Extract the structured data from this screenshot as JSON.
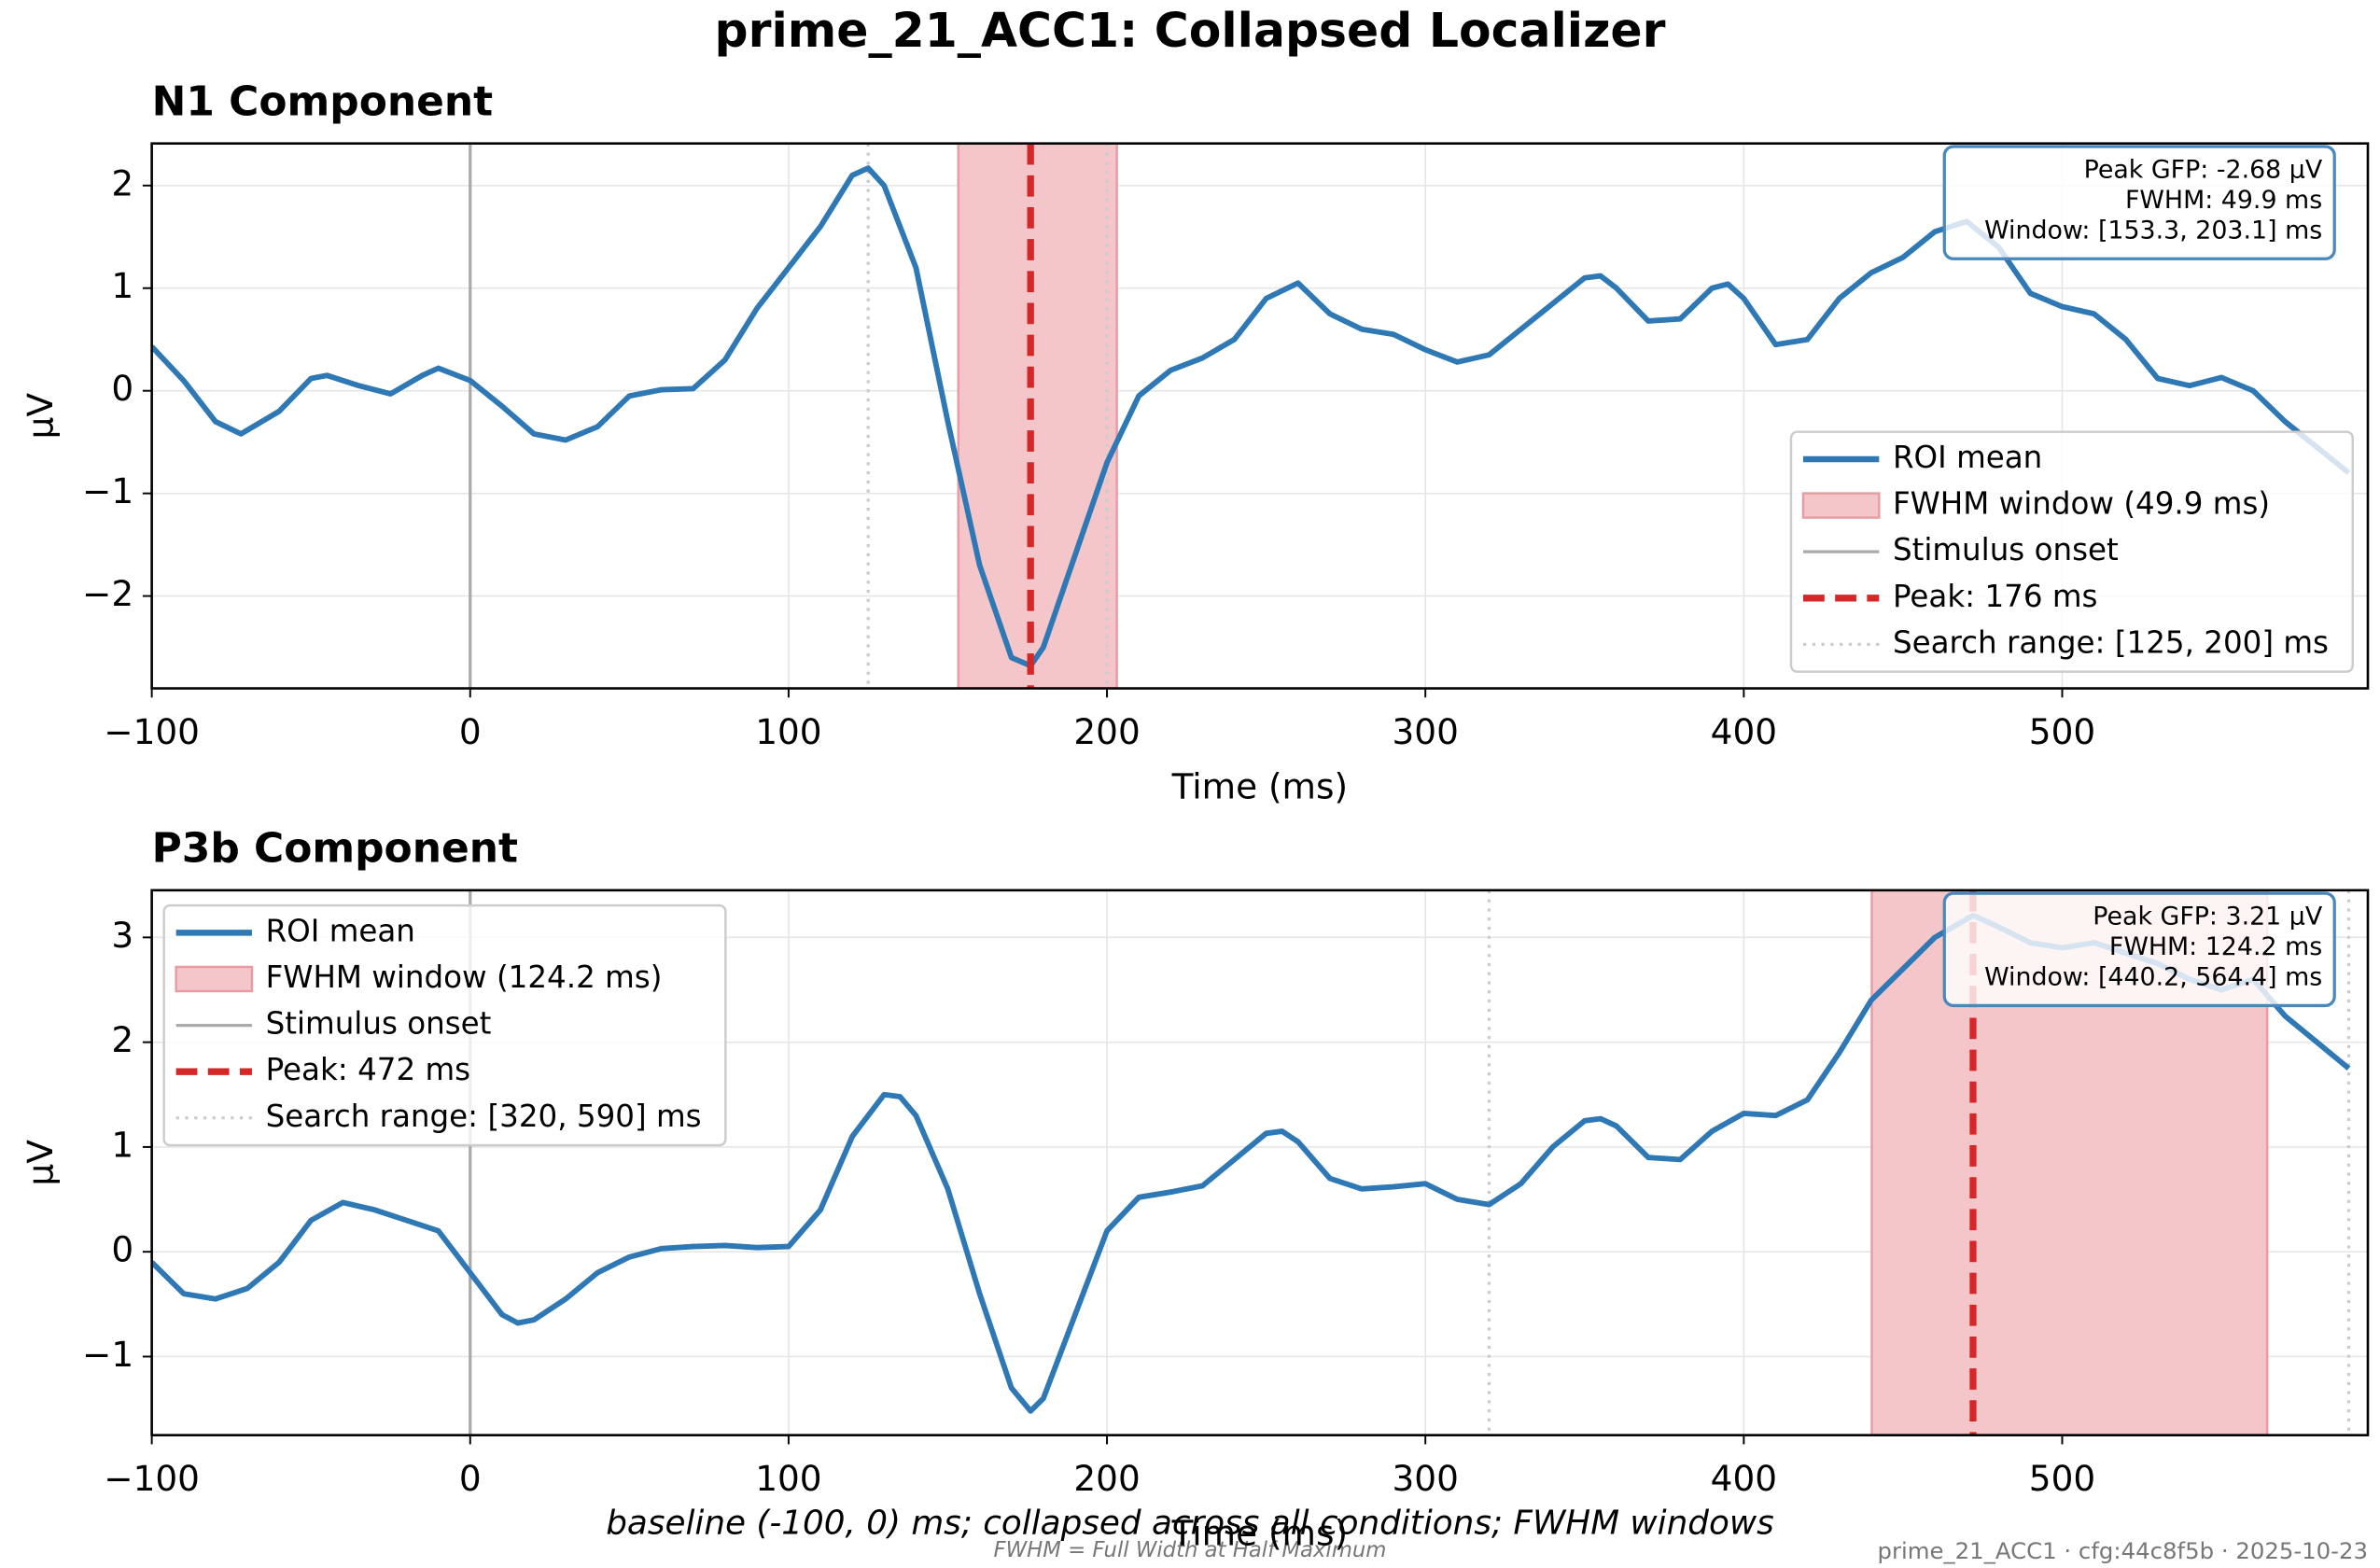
{
  "title": "prime_21_ACC1: Collapsed Localizer",
  "footer": {
    "caption": "baseline (-100, 0) ms; collapsed across all conditions; FWHM windows",
    "note": "FWHM = Full Width at Half Maximum",
    "stamp": "prime_21_ACC1 · cfg:44c8f5b · 2025-10-23"
  },
  "chart_data": [
    {
      "type": "line",
      "title": "N1 Component",
      "xlabel": "Time (ms)",
      "ylabel": "µV",
      "x": [
        -100,
        -90,
        -80,
        -72,
        -60,
        -50,
        -45,
        -35,
        -25,
        -15,
        -10,
        0,
        10,
        20,
        30,
        40,
        50,
        60,
        70,
        80,
        90,
        100,
        110,
        120,
        125,
        130,
        140,
        150,
        160,
        170,
        176,
        180,
        190,
        200,
        210,
        220,
        230,
        240,
        250,
        260,
        270,
        280,
        290,
        300,
        310,
        320,
        330,
        340,
        350,
        355,
        360,
        370,
        380,
        390,
        395,
        400,
        410,
        420,
        430,
        440,
        450,
        460,
        470,
        480,
        490,
        500,
        510,
        520,
        530,
        540,
        550,
        560,
        570,
        580,
        590
      ],
      "series": [
        {
          "name": "ROI mean",
          "color": "#2e78b5",
          "values": [
            0.43,
            0.1,
            -0.3,
            -0.42,
            -0.2,
            0.12,
            0.15,
            0.05,
            -0.03,
            0.15,
            0.22,
            0.1,
            -0.15,
            -0.42,
            -0.48,
            -0.35,
            -0.05,
            0.01,
            0.02,
            0.3,
            0.8,
            1.2,
            1.6,
            2.1,
            2.17,
            2.0,
            1.2,
            -0.3,
            -1.7,
            -2.6,
            -2.68,
            -2.5,
            -1.6,
            -0.7,
            -0.05,
            0.2,
            0.32,
            0.5,
            0.9,
            1.05,
            0.75,
            0.6,
            0.55,
            0.4,
            0.28,
            0.35,
            0.6,
            0.85,
            1.1,
            1.12,
            1.0,
            0.68,
            0.7,
            1.0,
            1.04,
            0.9,
            0.45,
            0.5,
            0.9,
            1.15,
            1.3,
            1.55,
            1.65,
            1.4,
            0.95,
            0.82,
            0.75,
            0.5,
            0.12,
            0.05,
            0.13,
            0.0,
            -0.3,
            -0.55,
            -0.8
          ]
        }
      ],
      "fwhm_window": {
        "name": "FWHM window (49.9 ms)",
        "range": [
          153.3,
          203.1
        ],
        "color": "#f4c6c9",
        "edge": "#e89ca2"
      },
      "stimulus_onset": {
        "name": "Stimulus onset",
        "x": 0,
        "color": "#aaaaaa"
      },
      "peak": {
        "name": "Peak: 176 ms",
        "x": 176,
        "color": "#d62728"
      },
      "search_range": {
        "name": "Search range: [125, 200] ms",
        "range": [
          125,
          200
        ],
        "color": "#cccccc"
      },
      "annotation": [
        "Peak GFP: -2.68 µV",
        "FWHM: 49.9 ms",
        "Window: [153.3, 203.1] ms"
      ],
      "xlim": [
        -100,
        596
      ],
      "ylim": [
        -2.9,
        2.41
      ],
      "xticks": [
        {
          "value": -100,
          "label": "−100"
        },
        0,
        100,
        200,
        300,
        400,
        500
      ],
      "yticks": [
        {
          "value": -2,
          "label": "−2"
        },
        {
          "value": -1,
          "label": "−1"
        },
        0,
        1,
        2
      ],
      "grid": true,
      "legend": "lower right"
    },
    {
      "type": "line",
      "title": "P3b Component",
      "xlabel": "Time (ms)",
      "ylabel": "µV",
      "x": [
        -100,
        -90,
        -80,
        -70,
        -60,
        -50,
        -40,
        -30,
        -20,
        -10,
        0,
        10,
        15,
        20,
        30,
        40,
        50,
        60,
        70,
        80,
        90,
        100,
        110,
        120,
        130,
        135,
        140,
        150,
        160,
        170,
        176,
        180,
        190,
        200,
        210,
        220,
        230,
        240,
        250,
        255,
        260,
        270,
        280,
        290,
        300,
        310,
        320,
        330,
        340,
        350,
        355,
        360,
        370,
        380,
        390,
        400,
        410,
        420,
        430,
        440,
        450,
        460,
        472,
        480,
        490,
        500,
        510,
        520,
        530,
        540,
        550,
        560,
        570,
        580,
        590
      ],
      "series": [
        {
          "name": "ROI mean",
          "color": "#2e78b5",
          "values": [
            -0.1,
            -0.4,
            -0.45,
            -0.35,
            -0.1,
            0.3,
            0.47,
            0.4,
            0.3,
            0.2,
            -0.2,
            -0.6,
            -0.68,
            -0.65,
            -0.45,
            -0.2,
            -0.05,
            0.03,
            0.05,
            0.06,
            0.04,
            0.05,
            0.4,
            1.1,
            1.5,
            1.48,
            1.3,
            0.6,
            -0.4,
            -1.3,
            -1.52,
            -1.4,
            -0.6,
            0.2,
            0.52,
            0.57,
            0.63,
            0.88,
            1.13,
            1.15,
            1.05,
            0.7,
            0.6,
            0.62,
            0.65,
            0.5,
            0.45,
            0.65,
            1.0,
            1.25,
            1.27,
            1.2,
            0.9,
            0.88,
            1.15,
            1.32,
            1.3,
            1.45,
            1.9,
            2.4,
            2.7,
            3.0,
            3.21,
            3.1,
            2.95,
            2.9,
            2.95,
            2.85,
            2.75,
            2.6,
            2.5,
            2.6,
            2.25,
            2.0,
            1.75
          ]
        }
      ],
      "fwhm_window": {
        "name": "FWHM window (124.2 ms)",
        "range": [
          440.2,
          564.4
        ],
        "color": "#f4c6c9",
        "edge": "#e89ca2"
      },
      "stimulus_onset": {
        "name": "Stimulus onset",
        "x": 0,
        "color": "#aaaaaa"
      },
      "peak": {
        "name": "Peak: 472 ms",
        "x": 472,
        "color": "#d62728"
      },
      "search_range": {
        "name": "Search range: [320, 590] ms",
        "range": [
          320,
          590
        ],
        "color": "#cccccc"
      },
      "annotation": [
        "Peak GFP: 3.21 µV",
        "FWHM: 124.2 ms",
        "Window: [440.2, 564.4] ms"
      ],
      "xlim": [
        -100,
        596
      ],
      "ylim": [
        -1.75,
        3.45
      ],
      "xticks": [
        {
          "value": -100,
          "label": "−100"
        },
        0,
        100,
        200,
        300,
        400,
        500
      ],
      "yticks": [
        {
          "value": -1,
          "label": "−1"
        },
        0,
        1,
        2,
        3
      ],
      "grid": true,
      "legend": "upper left"
    }
  ]
}
